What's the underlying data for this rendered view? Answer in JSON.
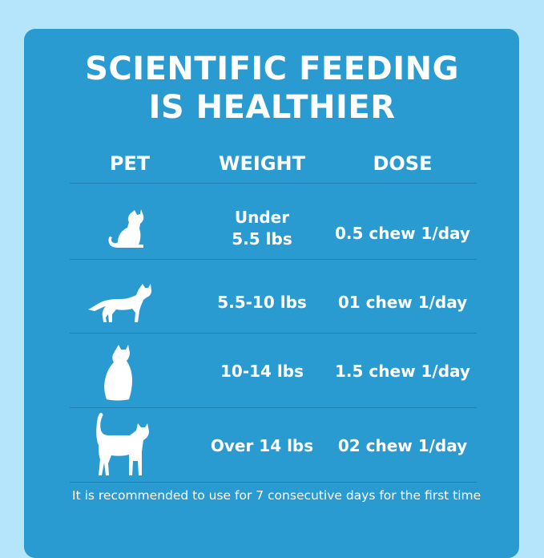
{
  "title": {
    "line1": "SCIENTIFIC FEEDING",
    "line2": "IS HEALTHIER"
  },
  "table": {
    "headers": [
      "PET",
      "WEIGHT",
      "DOSE"
    ],
    "rows": [
      {
        "icon": "sitting-kitten-icon",
        "weight": "Under 5.5 lbs",
        "dose": "0.5 chew 1/day"
      },
      {
        "icon": "walking-cat-icon",
        "weight": "5.5-10 lbs",
        "dose": "01 chew 1/day"
      },
      {
        "icon": "sitting-cat-icon",
        "weight": "10-14 lbs",
        "dose": "1.5 chew 1/day"
      },
      {
        "icon": "standing-cat-icon",
        "weight": "Over 14 lbs",
        "dose": "02 chew 1/day"
      }
    ]
  },
  "note": "It is recommended to use for 7 consecutive days for the first time",
  "colors": {
    "background": "#b4e5fb",
    "card": "#2a9bd1",
    "divider": "#1e7fb1",
    "text": "#ffffff"
  }
}
